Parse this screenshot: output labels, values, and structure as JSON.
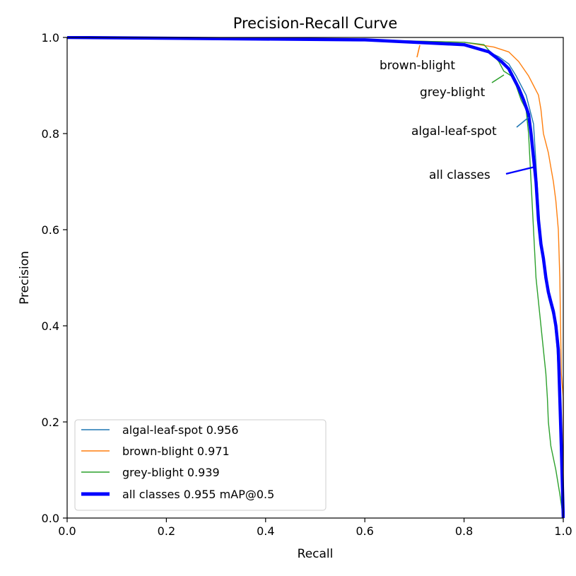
{
  "chart_data": {
    "type": "line",
    "title": "Precision-Recall Curve",
    "xlabel": "Recall",
    "ylabel": "Precision",
    "xlim": [
      0,
      1
    ],
    "ylim": [
      0,
      1
    ],
    "xticks": [
      "0.0",
      "0.2",
      "0.4",
      "0.6",
      "0.8",
      "1.0"
    ],
    "yticks": [
      "0.0",
      "0.2",
      "0.4",
      "0.6",
      "0.8",
      "1.0"
    ],
    "grid": false,
    "legend_position": "lower-left",
    "series": [
      {
        "name": "algal-leaf-spot",
        "legend_label": "algal-leaf-spot 0.956",
        "color": "#1f77b4",
        "line": "thin",
        "x": [
          0,
          0.6,
          0.8,
          0.84,
          0.87,
          0.89,
          0.905,
          0.915,
          0.925,
          0.93,
          0.935,
          0.94,
          0.943,
          0.946,
          0.95,
          0.953,
          0.957,
          0.96,
          0.963,
          0.967,
          0.97,
          0.975,
          0.98,
          0.983,
          0.987,
          0.99,
          0.992,
          0.994,
          0.996,
          0.998,
          1.0
        ],
        "y": [
          1.0,
          0.995,
          0.985,
          0.975,
          0.96,
          0.945,
          0.92,
          0.9,
          0.88,
          0.86,
          0.84,
          0.82,
          0.77,
          0.72,
          0.65,
          0.6,
          0.56,
          0.53,
          0.5,
          0.48,
          0.46,
          0.44,
          0.42,
          0.4,
          0.36,
          0.3,
          0.25,
          0.2,
          0.15,
          0.1,
          0.0
        ]
      },
      {
        "name": "brown-blight",
        "legend_label": "brown-blight 0.971",
        "color": "#ff7f0e",
        "line": "thin",
        "x": [
          0,
          0.6,
          0.8,
          0.86,
          0.89,
          0.91,
          0.93,
          0.94,
          0.95,
          0.955,
          0.96,
          0.965,
          0.97,
          0.975,
          0.98,
          0.985,
          0.99,
          0.993,
          0.996,
          1.0,
          1.0
        ],
        "y": [
          1.0,
          0.995,
          0.99,
          0.98,
          0.97,
          0.95,
          0.92,
          0.9,
          0.88,
          0.85,
          0.8,
          0.78,
          0.76,
          0.73,
          0.7,
          0.66,
          0.6,
          0.5,
          0.3,
          0.25,
          0.0
        ]
      },
      {
        "name": "grey-blight",
        "legend_label": "grey-blight 0.939",
        "color": "#2ca02c",
        "line": "thin",
        "x": [
          0,
          0.6,
          0.8,
          0.84,
          0.87,
          0.88,
          0.895,
          0.905,
          0.915,
          0.925,
          0.93,
          0.935,
          0.94,
          0.945,
          0.95,
          0.955,
          0.96,
          0.965,
          0.968,
          0.97,
          0.975,
          0.985,
          0.993,
          1.0
        ],
        "y": [
          1.0,
          0.995,
          0.99,
          0.985,
          0.95,
          0.93,
          0.92,
          0.9,
          0.87,
          0.85,
          0.8,
          0.7,
          0.6,
          0.5,
          0.45,
          0.4,
          0.35,
          0.3,
          0.25,
          0.2,
          0.15,
          0.1,
          0.05,
          0.0
        ]
      },
      {
        "name": "all classes",
        "legend_label": "all classes 0.955 mAP@0.5",
        "color": "#0000ff",
        "line": "thick",
        "x": [
          0,
          0.6,
          0.8,
          0.85,
          0.875,
          0.89,
          0.9,
          0.91,
          0.92,
          0.93,
          0.935,
          0.94,
          0.945,
          0.95,
          0.955,
          0.96,
          0.965,
          0.97,
          0.975,
          0.98,
          0.985,
          0.99,
          0.993,
          0.996,
          1.0
        ],
        "y": [
          1.0,
          0.995,
          0.985,
          0.97,
          0.95,
          0.935,
          0.915,
          0.895,
          0.87,
          0.84,
          0.8,
          0.75,
          0.7,
          0.62,
          0.57,
          0.54,
          0.5,
          0.47,
          0.45,
          0.43,
          0.4,
          0.35,
          0.25,
          0.15,
          0.0
        ]
      }
    ],
    "annotations": [
      {
        "text": "brown-blight",
        "series": "brown-blight",
        "point": [
          0.72,
          0.985
        ]
      },
      {
        "text": "grey-blight",
        "series": "grey-blight",
        "point": [
          0.885,
          0.915
        ]
      },
      {
        "text": "algal-leaf-spot",
        "series": "algal-leaf-spot",
        "point": [
          0.935,
          0.835
        ]
      },
      {
        "text": "all classes",
        "series": "all classes",
        "point": [
          0.945,
          0.725
        ]
      }
    ]
  }
}
